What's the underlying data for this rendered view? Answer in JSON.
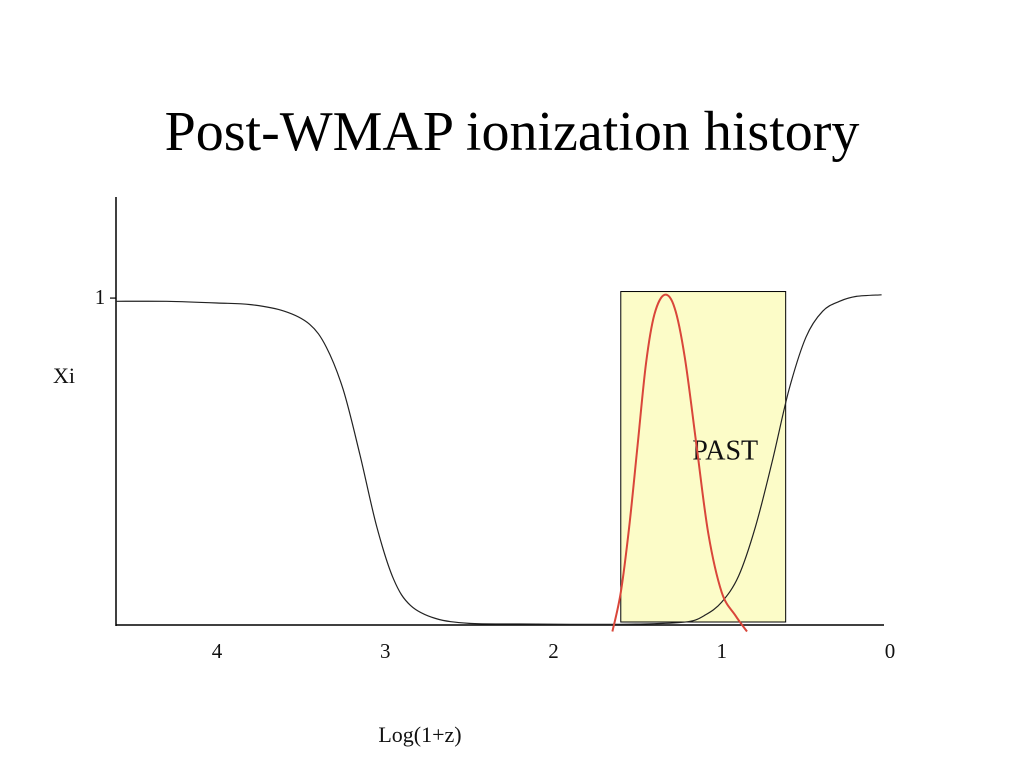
{
  "slide": {
    "title": "Post-WMAP ionization history"
  },
  "chart_data": {
    "type": "line",
    "title": "",
    "xlabel": "Log(1+z)",
    "ylabel": "Xi",
    "x_direction": "decreasing-left-to-right",
    "xlim": [
      4.6,
      0.0
    ],
    "ylim": [
      0,
      1.3
    ],
    "x_ticks": [
      {
        "value": 4,
        "label": "4"
      },
      {
        "value": 3,
        "label": "3"
      },
      {
        "value": 2,
        "label": "2"
      },
      {
        "value": 1,
        "label": "1"
      },
      {
        "value": 0,
        "label": "0"
      }
    ],
    "y_ticks": [
      {
        "value": 1,
        "label": "1"
      }
    ],
    "series": [
      {
        "color": "#222222",
        "points": [
          [
            4.6,
            0.99
          ],
          [
            4.3,
            0.99
          ],
          [
            4.0,
            0.985
          ],
          [
            3.8,
            0.98
          ],
          [
            3.6,
            0.96
          ],
          [
            3.45,
            0.92
          ],
          [
            3.35,
            0.85
          ],
          [
            3.25,
            0.72
          ],
          [
            3.15,
            0.52
          ],
          [
            3.05,
            0.3
          ],
          [
            2.95,
            0.14
          ],
          [
            2.85,
            0.06
          ],
          [
            2.7,
            0.02
          ],
          [
            2.5,
            0.005
          ],
          [
            2.2,
            0.003
          ],
          [
            1.9,
            0.002
          ],
          [
            1.6,
            0.002
          ],
          [
            1.4,
            0.004
          ],
          [
            1.2,
            0.01
          ],
          [
            1.1,
            0.03
          ],
          [
            1.0,
            0.07
          ],
          [
            0.9,
            0.15
          ],
          [
            0.8,
            0.3
          ],
          [
            0.7,
            0.5
          ],
          [
            0.6,
            0.72
          ],
          [
            0.5,
            0.88
          ],
          [
            0.4,
            0.96
          ],
          [
            0.3,
            0.99
          ],
          [
            0.2,
            1.005
          ],
          [
            0.05,
            1.01
          ]
        ]
      },
      {
        "color": "#d9463a",
        "points": [
          [
            1.65,
            -0.02
          ],
          [
            1.6,
            0.1
          ],
          [
            1.55,
            0.3
          ],
          [
            1.5,
            0.55
          ],
          [
            1.45,
            0.8
          ],
          [
            1.4,
            0.95
          ],
          [
            1.34,
            1.01
          ],
          [
            1.28,
            0.97
          ],
          [
            1.22,
            0.82
          ],
          [
            1.15,
            0.55
          ],
          [
            1.08,
            0.28
          ],
          [
            1.0,
            0.1
          ],
          [
            0.92,
            0.03
          ],
          [
            0.85,
            -0.02
          ]
        ]
      }
    ],
    "annotations": [
      {
        "text": "PAST",
        "region_x": [
          1.6,
          0.62
        ],
        "region_y": [
          0,
          1.02
        ],
        "fill": "#fcfcc8"
      }
    ]
  }
}
